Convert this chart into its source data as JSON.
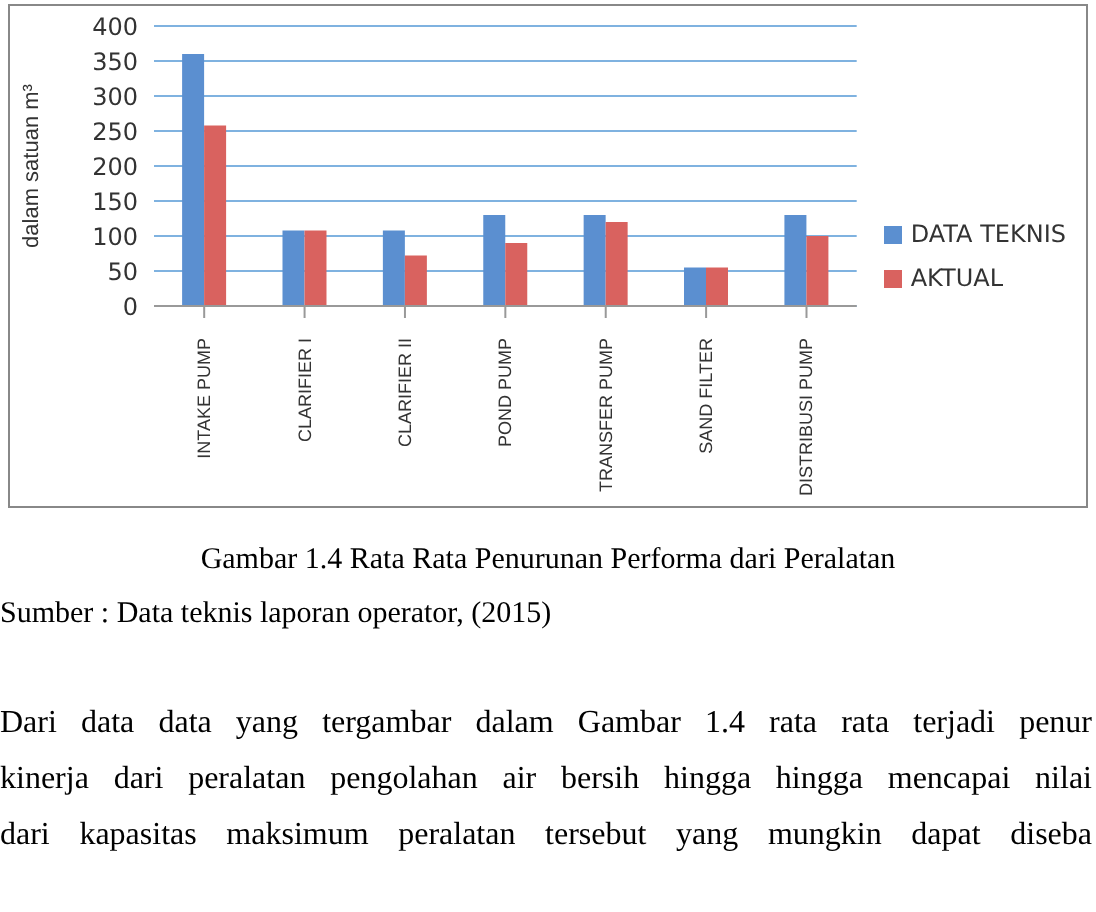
{
  "chart_data": {
    "type": "bar",
    "ylabel": "dalam satuan m³",
    "categories": [
      "INTAKE PUMP",
      "CLARIFIER I",
      "CLARIFIER II",
      "POND PUMP",
      "TRANSFER PUMP",
      "SAND FILTER",
      "DISTRIBUSI PUMP"
    ],
    "series": [
      {
        "name": "DATA TEKNIS",
        "color": "#5b8fd0",
        "values": [
          360,
          108,
          108,
          130,
          130,
          55,
          130
        ]
      },
      {
        "name": "AKTUAL",
        "color": "#d9625f",
        "values": [
          258,
          108,
          72,
          90,
          120,
          55,
          100
        ]
      }
    ],
    "ylim": [
      0,
      400
    ],
    "yticks": [
      0,
      50,
      100,
      150,
      200,
      250,
      300,
      350,
      400
    ],
    "grid": "y",
    "legend": "right",
    "annotations": [
      "Gambar  1.4  Rata Rata Penurunan Performa dari Peralatan",
      "Sumber  : Data teknis laporan operator, (2015)",
      "Dari data data yang tergambar dalam Gambar 1.4  rata rata terjadi penur",
      "kinerja dari peralatan pengolahan air bersih hingga hingga mencapai nilai",
      "dari kapasitas maksimum  peralatan tersebut yang mungkin dapat diseba"
    ]
  }
}
